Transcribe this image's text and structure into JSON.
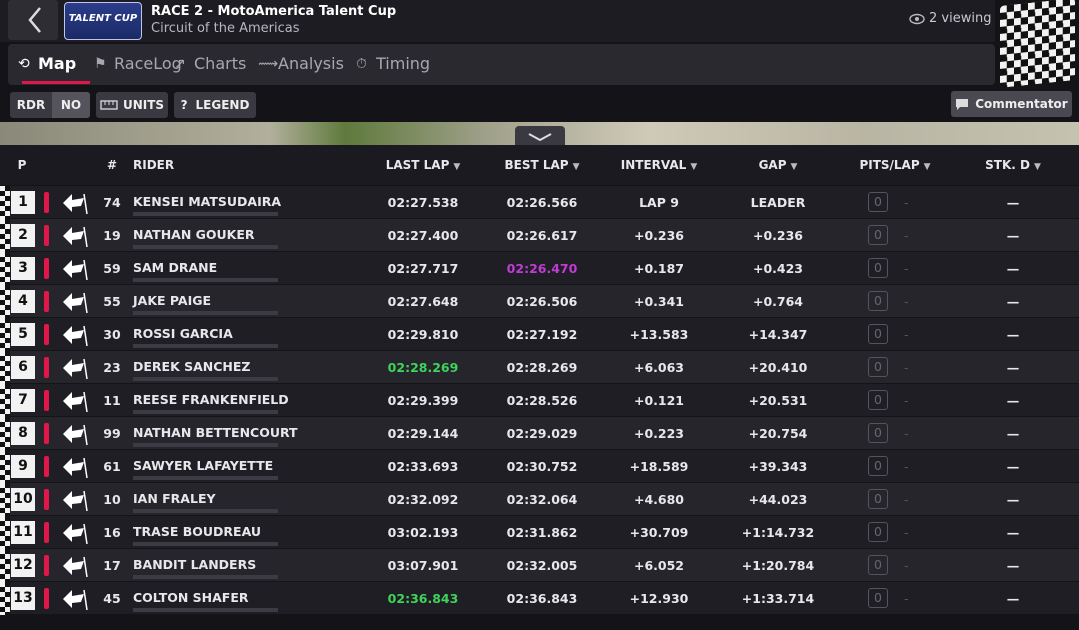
{
  "header": {
    "logo": "TALENT CUP",
    "title": "RACE 2 - MotoAmerica Talent Cup",
    "subtitle": "Circuit of the Americas",
    "viewing": "2 viewing"
  },
  "tabs": [
    "Map",
    "RaceLog",
    "Charts",
    "Analysis",
    "Timing"
  ],
  "toolbar": {
    "rdr": "RDR",
    "rdr_value": "NO",
    "units": "UNITS",
    "legend_icon": "?",
    "legend": "LEGEND",
    "commentator": "Commentator"
  },
  "table": {
    "columns": [
      "P",
      "#",
      "RIDER",
      "LAST LAP",
      "BEST LAP",
      "INTERVAL",
      "GAP",
      "PITS/LAP",
      "STK. D"
    ],
    "rows": [
      {
        "pos": 1,
        "number": 74,
        "rider": "KENSEI MATSUDAIRA",
        "last_lap": "02:27.538",
        "best_lap": "02:26.566",
        "interval": "LAP 9",
        "gap": "LEADER",
        "pits": "0",
        "pits_lap": "-",
        "stk": "—"
      },
      {
        "pos": 2,
        "number": 19,
        "rider": "NATHAN GOUKER",
        "last_lap": "02:27.400",
        "best_lap": "02:26.617",
        "interval": "+0.236",
        "gap": "+0.236",
        "pits": "0",
        "pits_lap": "-",
        "stk": "—"
      },
      {
        "pos": 3,
        "number": 59,
        "rider": "SAM DRANE",
        "last_lap": "02:27.717",
        "best_lap": "02:26.470",
        "best_lap_color": "#c23bd4",
        "interval": "+0.187",
        "gap": "+0.423",
        "pits": "0",
        "pits_lap": "-",
        "stk": "—"
      },
      {
        "pos": 4,
        "number": 55,
        "rider": "JAKE PAIGE",
        "last_lap": "02:27.648",
        "best_lap": "02:26.506",
        "interval": "+0.341",
        "gap": "+0.764",
        "pits": "0",
        "pits_lap": "-",
        "stk": "—"
      },
      {
        "pos": 5,
        "number": 30,
        "rider": "ROSSI GARCIA",
        "last_lap": "02:29.810",
        "best_lap": "02:27.192",
        "interval": "+13.583",
        "gap": "+14.347",
        "pits": "0",
        "pits_lap": "-",
        "stk": "—"
      },
      {
        "pos": 6,
        "number": 23,
        "rider": "DEREK SANCHEZ",
        "last_lap": "02:28.269",
        "last_lap_color": "#3ed35a",
        "best_lap": "02:28.269",
        "interval": "+6.063",
        "gap": "+20.410",
        "pits": "0",
        "pits_lap": "-",
        "stk": "—"
      },
      {
        "pos": 7,
        "number": 11,
        "rider": "REESE FRANKENFIELD",
        "last_lap": "02:29.399",
        "best_lap": "02:28.526",
        "interval": "+0.121",
        "gap": "+20.531",
        "pits": "0",
        "pits_lap": "-",
        "stk": "—"
      },
      {
        "pos": 8,
        "number": 99,
        "rider": "NATHAN BETTENCOURT",
        "last_lap": "02:29.144",
        "best_lap": "02:29.029",
        "interval": "+0.223",
        "gap": "+20.754",
        "pits": "0",
        "pits_lap": "-",
        "stk": "—"
      },
      {
        "pos": 9,
        "number": 61,
        "rider": "SAWYER LAFAYETTE",
        "last_lap": "02:33.693",
        "best_lap": "02:30.752",
        "interval": "+18.589",
        "gap": "+39.343",
        "pits": "0",
        "pits_lap": "-",
        "stk": "—"
      },
      {
        "pos": 10,
        "number": 10,
        "rider": "IAN FRALEY",
        "last_lap": "02:32.092",
        "best_lap": "02:32.064",
        "interval": "+4.680",
        "gap": "+44.023",
        "pits": "0",
        "pits_lap": "-",
        "stk": "—"
      },
      {
        "pos": 11,
        "number": 16,
        "rider": "TRASE BOUDREAU",
        "last_lap": "03:02.193",
        "best_lap": "02:31.862",
        "interval": "+30.709",
        "gap": "+1:14.732",
        "pits": "0",
        "pits_lap": "-",
        "stk": "—"
      },
      {
        "pos": 12,
        "number": 17,
        "rider": "BANDIT LANDERS",
        "last_lap": "03:07.901",
        "best_lap": "02:32.005",
        "interval": "+6.052",
        "gap": "+1:20.784",
        "pits": "0",
        "pits_lap": "-",
        "stk": "—"
      },
      {
        "pos": 13,
        "number": 45,
        "rider": "COLTON SHAFER",
        "last_lap": "02:36.843",
        "last_lap_color": "#3ed35a",
        "best_lap": "02:36.843",
        "interval": "+12.930",
        "gap": "+1:33.714",
        "pits": "0",
        "pits_lap": "-",
        "stk": "—"
      }
    ]
  }
}
